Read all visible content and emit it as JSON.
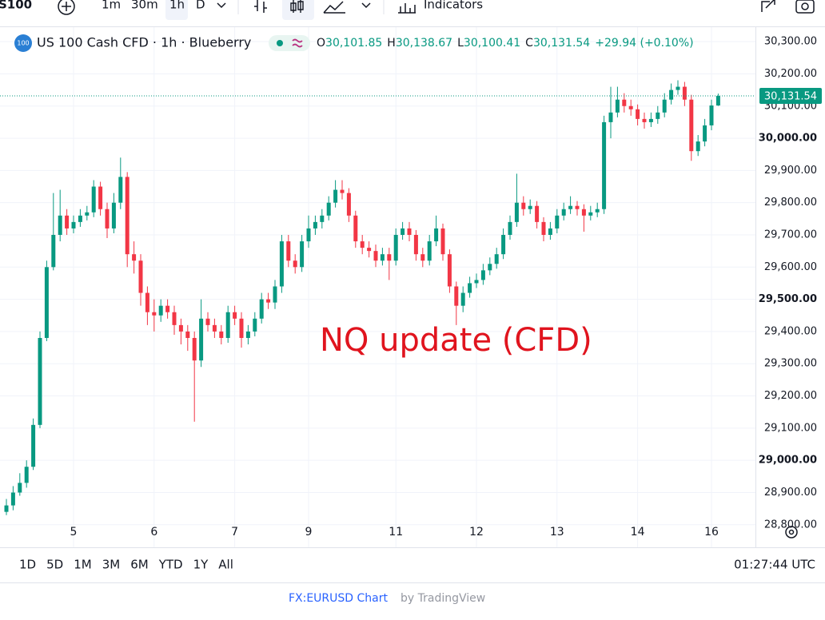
{
  "toolbar": {
    "symbol": "S100",
    "intervals": [
      "1m",
      "30m",
      "1h",
      "D"
    ],
    "indicators": "Indicators"
  },
  "chart_data": {
    "type": "candlestick",
    "icon": "100",
    "title": "US 100 Cash CFD · 1h · Blueberry",
    "ohlc_legend": [
      {
        "key": "O",
        "text": "30,101.85"
      },
      {
        "key": "H",
        "text": "30,138.67"
      },
      {
        "key": "L",
        "text": "30,100.41"
      },
      {
        "key": "C",
        "text": "30,131.54"
      }
    ],
    "change": "+29.94 (+0.10%)",
    "annotation": "NQ update (CFD)",
    "up_color": "#089981",
    "down_color": "#f23645",
    "categories": [
      null,
      null,
      null,
      null,
      null,
      null,
      null,
      null,
      null,
      null,
      "5",
      null,
      null,
      null,
      null,
      null,
      null,
      null,
      null,
      null,
      null,
      null,
      "6",
      null,
      null,
      null,
      null,
      null,
      null,
      null,
      null,
      null,
      null,
      null,
      "7",
      null,
      null,
      null,
      null,
      null,
      null,
      null,
      null,
      null,
      null,
      "9",
      null,
      null,
      null,
      null,
      null,
      null,
      null,
      null,
      null,
      null,
      null,
      null,
      "11",
      null,
      null,
      null,
      null,
      null,
      null,
      null,
      null,
      null,
      null,
      null,
      "12",
      null,
      null,
      null,
      null,
      null,
      null,
      null,
      null,
      null,
      null,
      null,
      "13",
      null,
      null,
      null,
      null,
      null,
      null,
      null,
      null,
      null,
      null,
      null,
      "14",
      null,
      null,
      null,
      null,
      null,
      null,
      null,
      null,
      null,
      null,
      "16",
      null
    ],
    "open": [
      28840,
      28860,
      28900,
      28930,
      28980,
      29110,
      29380,
      29600,
      29700,
      29760,
      29720,
      29740,
      29760,
      29770,
      29850,
      29780,
      29720,
      29800,
      29880,
      29640,
      29620,
      29520,
      29460,
      29450,
      29480,
      29460,
      29420,
      29400,
      29380,
      29310,
      29440,
      29420,
      29400,
      29380,
      29460,
      29440,
      29380,
      29400,
      29440,
      29500,
      29490,
      29540,
      29680,
      29620,
      29600,
      29680,
      29720,
      29740,
      29760,
      29800,
      29840,
      29830,
      29760,
      29680,
      29660,
      29650,
      29620,
      29640,
      29620,
      29700,
      29720,
      29700,
      29640,
      29620,
      29680,
      29720,
      29640,
      29540,
      29480,
      29520,
      29550,
      29560,
      29590,
      29610,
      29640,
      29700,
      29740,
      29800,
      29780,
      29790,
      29740,
      29700,
      29720,
      29760,
      29780,
      29790,
      29780,
      29760,
      29770,
      29780,
      30050,
      30080,
      30120,
      30100,
      30090,
      30060,
      30050,
      30060,
      30080,
      30120,
      30150,
      30160,
      30120,
      29960,
      29990,
      30040,
      30101.85
    ],
    "high": [
      28880,
      28920,
      28960,
      29000,
      29130,
      29400,
      29620,
      29830,
      29840,
      29780,
      29760,
      29780,
      29790,
      29870,
      29865,
      29800,
      29830,
      29940,
      29895,
      29680,
      29640,
      29540,
      29500,
      29500,
      29500,
      29480,
      29440,
      29420,
      29400,
      29500,
      29460,
      29440,
      29420,
      29480,
      29480,
      29460,
      29420,
      29460,
      29520,
      29520,
      29560,
      29700,
      29700,
      29640,
      29700,
      29760,
      29760,
      29780,
      29820,
      29870,
      29870,
      29845,
      29775,
      29700,
      29680,
      29670,
      29660,
      29660,
      29720,
      29740,
      29740,
      29715,
      29660,
      29700,
      29760,
      29735,
      29655,
      29555,
      29540,
      29570,
      29580,
      29610,
      29630,
      29660,
      29720,
      29760,
      29890,
      29820,
      29810,
      29805,
      29755,
      29740,
      29780,
      29800,
      29820,
      29805,
      29795,
      29790,
      29800,
      30070,
      30160,
      30160,
      30140,
      30120,
      30105,
      30080,
      30080,
      30100,
      30140,
      30170,
      30180,
      30175,
      30135,
      30010,
      30060,
      30120,
      30138.67
    ],
    "low": [
      28830,
      28845,
      28890,
      28915,
      28970,
      29100,
      29370,
      29590,
      29680,
      29700,
      29705,
      29725,
      29745,
      29755,
      29760,
      29690,
      29705,
      29780,
      29600,
      29580,
      29480,
      29420,
      29400,
      29430,
      29440,
      29390,
      29360,
      29340,
      29120,
      29290,
      29400,
      29380,
      29360,
      29365,
      29420,
      29350,
      29360,
      29385,
      29425,
      29470,
      29470,
      29520,
      29600,
      29580,
      29585,
      29660,
      29700,
      29720,
      29745,
      29785,
      29810,
      29740,
      29660,
      29640,
      29630,
      29600,
      29605,
      29560,
      29605,
      29685,
      29680,
      29620,
      29600,
      29605,
      29665,
      29620,
      29520,
      29420,
      29460,
      29505,
      29535,
      29545,
      29575,
      29595,
      29625,
      29685,
      29725,
      29760,
      29765,
      29720,
      29680,
      29685,
      29705,
      29745,
      29765,
      29760,
      29710,
      29745,
      29755,
      29765,
      30000,
      30065,
      30080,
      30070,
      30040,
      30030,
      30035,
      30045,
      30065,
      30105,
      30135,
      30100,
      29930,
      29945,
      29975,
      30025,
      30100.41
    ],
    "close": [
      28860,
      28900,
      28930,
      28980,
      29110,
      29380,
      29600,
      29700,
      29760,
      29720,
      29740,
      29760,
      29770,
      29850,
      29780,
      29720,
      29800,
      29880,
      29640,
      29620,
      29520,
      29460,
      29450,
      29480,
      29460,
      29420,
      29400,
      29380,
      29310,
      29440,
      29420,
      29400,
      29380,
      29460,
      29440,
      29380,
      29400,
      29440,
      29500,
      29490,
      29540,
      29680,
      29620,
      29600,
      29680,
      29720,
      29740,
      29760,
      29800,
      29840,
      29830,
      29760,
      29680,
      29660,
      29650,
      29620,
      29640,
      29620,
      29700,
      29720,
      29700,
      29640,
      29620,
      29680,
      29720,
      29640,
      29540,
      29480,
      29520,
      29550,
      29560,
      29590,
      29610,
      29640,
      29700,
      29740,
      29800,
      29780,
      29790,
      29740,
      29700,
      29720,
      29760,
      29780,
      29790,
      29780,
      29760,
      29770,
      29780,
      30050,
      30080,
      30120,
      30100,
      30090,
      30060,
      30050,
      30060,
      30080,
      30120,
      30150,
      30160,
      30120,
      29960,
      29990,
      30040,
      30101.85,
      30131.54
    ],
    "ylim": [
      28730,
      30345
    ],
    "yticks": [
      {
        "value": 28800,
        "label": "28,800.00"
      },
      {
        "value": 28900,
        "label": "28,900.00"
      },
      {
        "value": 29000,
        "label": "29,000.00"
      },
      {
        "value": 29100,
        "label": "29,100.00"
      },
      {
        "value": 29200,
        "label": "29,200.00"
      },
      {
        "value": 29300,
        "label": "29,300.00"
      },
      {
        "value": 29400,
        "label": "29,400.00"
      },
      {
        "value": 29500,
        "label": "29,500.00"
      },
      {
        "value": 29600,
        "label": "29,600.00"
      },
      {
        "value": 29700,
        "label": "29,700.00"
      },
      {
        "value": 29800,
        "label": "29,800.00"
      },
      {
        "value": 29900,
        "label": "29,900.00"
      },
      {
        "value": 30000,
        "label": "30,000.00"
      },
      {
        "value": 30100,
        "label": "30,100.00"
      },
      {
        "value": 30200,
        "label": "30,200.00"
      },
      {
        "value": 30300,
        "label": "30,300.00"
      }
    ],
    "last_price": {
      "value": 30131.54,
      "label": "30,131.54"
    },
    "grid": true
  },
  "range_buttons": [
    "1D",
    "5D",
    "1M",
    "3M",
    "6M",
    "YTD",
    "1Y",
    "All"
  ],
  "clock": "01:27:44 UTC",
  "footer": {
    "link": "FX:EURUSD Chart",
    "by": "by TradingView"
  }
}
